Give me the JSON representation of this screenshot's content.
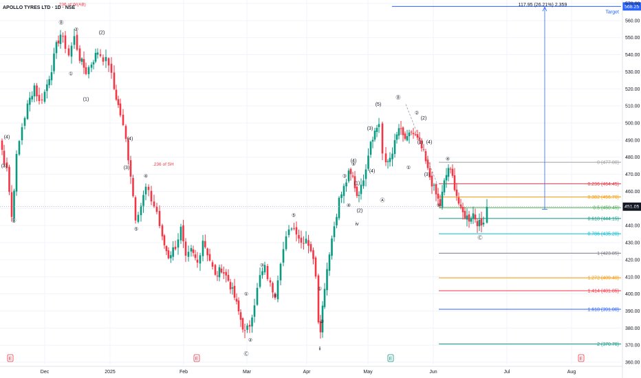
{
  "chart_data": {
    "type": "candlestick",
    "title": "APOLLO TYRES LTD · 1D · NSE",
    "x_ticks": [
      "Dec",
      "2025",
      "Feb",
      "Mar",
      "Apr",
      "May",
      "Jun",
      "Jul",
      "Aug"
    ],
    "y_ticks": [
      360,
      370,
      380,
      390,
      400,
      410,
      420,
      430,
      440,
      450,
      460,
      470,
      480,
      490,
      500,
      510,
      520,
      530,
      540,
      550,
      560,
      570
    ],
    "ylim": [
      356,
      572
    ],
    "last_price": "451.05",
    "target_price": "568.25",
    "target_label": "Target",
    "measure_label": "117.95 (26.21%) 2,359",
    "fib_levels": [
      {
        "label": "0 (477.00)",
        "value": 477.0,
        "color": "#9e9e9e"
      },
      {
        "label": "0.236 (464.45)",
        "value": 464.45,
        "color": "#f23645"
      },
      {
        "label": "0.382 (456.70)",
        "value": 456.7,
        "color": "#ff9800"
      },
      {
        "label": "0.5 (450.45)",
        "value": 450.45,
        "color": "#4caf50"
      },
      {
        "label": "0.618 (444.15)",
        "value": 444.15,
        "color": "#089981"
      },
      {
        "label": "0.786 (435.20)",
        "value": 435.2,
        "color": "#00bcd4"
      },
      {
        "label": "1 (423.85)",
        "value": 423.85,
        "color": "#787b86"
      },
      {
        "label": "1.272 (409.40)",
        "value": 409.4,
        "color": "#ff9800"
      },
      {
        "label": "1.414 (401.85)",
        "value": 401.85,
        "color": "#f23645"
      },
      {
        "label": "1.618 (391.00)",
        "value": 391.0,
        "color": "#2962ff"
      },
      {
        "label": "2 (370.70)",
        "value": 370.7,
        "color": "#089981"
      }
    ],
    "annotations": [
      {
        "text": ".236 of W(AB)",
        "x": 84,
        "y": 568.5,
        "color": "#f23645"
      },
      {
        "text": ".236 of SH",
        "x": 222,
        "y": 475,
        "color": "#f23645"
      }
    ],
    "wave_labels": [
      {
        "text": "(4)",
        "x": 10,
        "y": 491
      },
      {
        "text": "(3)",
        "x": 6,
        "y": 474
      },
      {
        "text": "Ⓑ",
        "x": 20,
        "y": 442
      },
      {
        "text": "Ⓑ",
        "x": 89,
        "y": 558
      },
      {
        "text": "②",
        "x": 111,
        "y": 554
      },
      {
        "text": "①",
        "x": 103,
        "y": 528
      },
      {
        "text": "(2)",
        "x": 148,
        "y": 552
      },
      {
        "text": "(1)",
        "x": 125,
        "y": 513
      },
      {
        "text": "(4)",
        "x": 189,
        "y": 490
      },
      {
        "text": "(3)",
        "x": 184,
        "y": 473
      },
      {
        "text": "④",
        "x": 212,
        "y": 468
      },
      {
        "text": "⑤",
        "x": 198,
        "y": 437
      },
      {
        "text": "③",
        "x": 381,
        "y": 416
      },
      {
        "text": "④",
        "x": 400,
        "y": 398
      },
      {
        "text": "①",
        "x": 358,
        "y": 399
      },
      {
        "text": "②",
        "x": 364,
        "y": 372
      },
      {
        "text": "Ⓒ",
        "x": 358,
        "y": 364
      },
      {
        "text": "⑤",
        "x": 427,
        "y": 445
      },
      {
        "text": "①",
        "x": 465,
        "y": 402
      },
      {
        "text": "②",
        "x": 468,
        "y": 383
      },
      {
        "text": "ii",
        "x": 465,
        "y": 367
      },
      {
        "text": "③",
        "x": 501,
        "y": 468
      },
      {
        "text": "④",
        "x": 507,
        "y": 451
      },
      {
        "text": "(2)",
        "x": 523,
        "y": 448
      },
      {
        "text": "iv",
        "x": 519,
        "y": 440
      },
      {
        "text": "(1)",
        "x": 519,
        "y": 464
      },
      {
        "text": "⑤",
        "x": 514,
        "y": 475
      },
      {
        "text": "(4)",
        "x": 514,
        "y": 477
      },
      {
        "text": "(4)",
        "x": 541,
        "y": 471
      },
      {
        "text": "(3)",
        "x": 538,
        "y": 496
      },
      {
        "text": "(5)",
        "x": 550,
        "y": 510
      },
      {
        "text": "Ⓑ",
        "x": 579,
        "y": 514
      },
      {
        "text": "Ⓐ",
        "x": 556,
        "y": 454
      },
      {
        "text": "①",
        "x": 594,
        "y": 473
      },
      {
        "text": "②",
        "x": 606,
        "y": 505
      },
      {
        "text": "(2)",
        "x": 616,
        "y": 502
      },
      {
        "text": "(1)",
        "x": 611,
        "y": 488
      },
      {
        "text": "(4)",
        "x": 624,
        "y": 488
      },
      {
        "text": "(3)",
        "x": 621,
        "y": 469
      },
      {
        "text": "④",
        "x": 651,
        "y": 478
      },
      {
        "text": "⑤",
        "x": 638,
        "y": 451
      },
      {
        "text": "Ⓒ",
        "x": 698,
        "y": 432
      }
    ],
    "event_markers": [
      {
        "text": "E",
        "x": 15,
        "type": "red"
      },
      {
        "text": "E",
        "x": 286,
        "type": "red"
      },
      {
        "text": "E",
        "x": 568,
        "type": "green"
      },
      {
        "text": "E",
        "x": 845,
        "type": "red"
      }
    ]
  }
}
